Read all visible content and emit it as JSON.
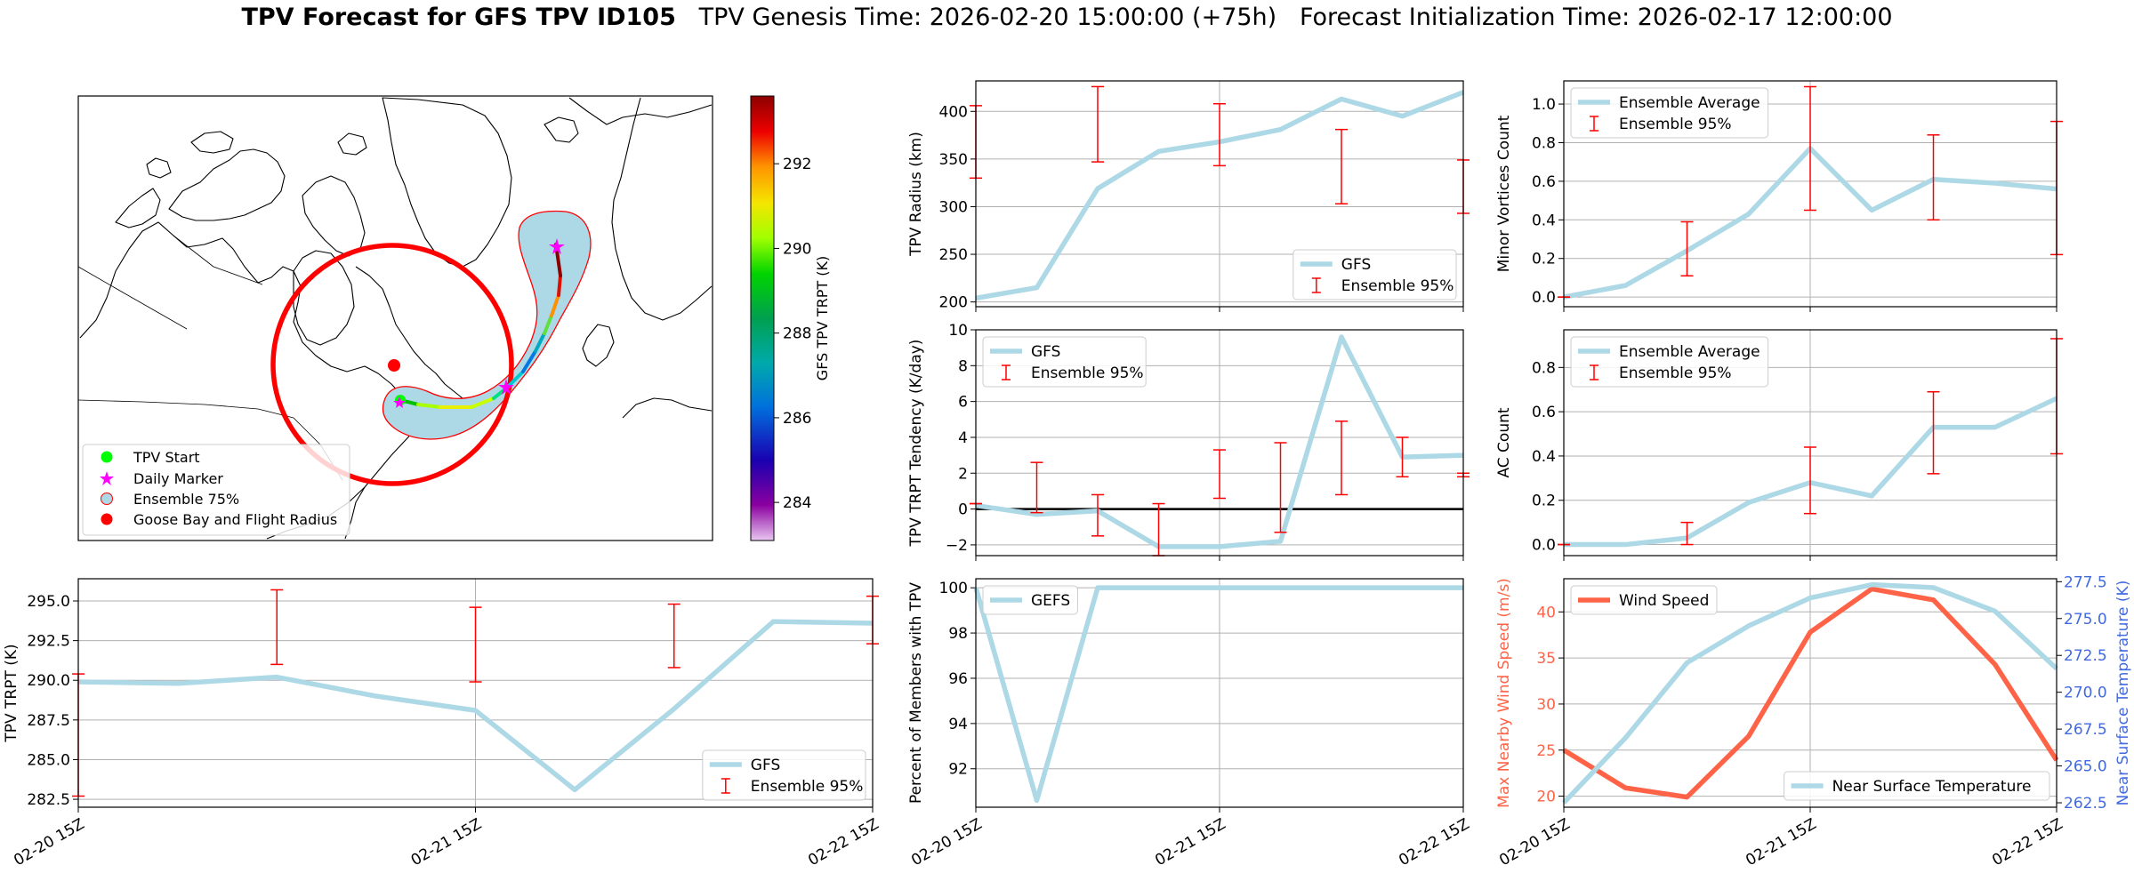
{
  "title": {
    "main": "TPV Forecast for GFS TPV ID105",
    "genesis": "TPV Genesis Time: 2026-02-20 15:00:00 (+75h)",
    "init": "Forecast Initialization Time: 2026-02-17 12:00:00"
  },
  "colors": {
    "gfs_line": "#add8e6",
    "errorbar": "#ff0000",
    "wind_line": "#ff6347",
    "temp_axis": "#4169e1",
    "track_fill": "#add8e6",
    "zero_line": "#000000"
  },
  "chart_data": [
    {
      "id": "map",
      "type": "map",
      "colorbar": {
        "label": "GFS TPV TRPT (K)",
        "ticks": [
          284,
          286,
          288,
          290,
          292
        ],
        "range": [
          283.1,
          293.6
        ],
        "colormap": "nipy_spectral"
      },
      "legend": [
        "TPV Start",
        "Daily Marker",
        "Ensemble 75%",
        "Goose Bay and Flight Radius"
      ],
      "legend_placement": "lower-left"
    },
    {
      "id": "radius",
      "type": "line",
      "x_ticks": [
        "",
        "",
        ""
      ],
      "ylabel": "TPV Radius (km)",
      "ylim": [
        195,
        432
      ],
      "yticks": [
        200,
        250,
        300,
        350,
        400
      ],
      "ytick_labels": [
        "200",
        "250",
        "300",
        "350",
        "400"
      ],
      "grid": true,
      "legend": [
        "GFS",
        "Ensemble 95%"
      ],
      "legend_placement": "lower-right",
      "series": [
        {
          "name": "GFS",
          "x": [
            0,
            6,
            12,
            18,
            24,
            30,
            36,
            42,
            48
          ],
          "values": [
            204,
            215,
            319,
            358,
            368,
            381,
            413,
            395,
            420
          ]
        }
      ],
      "errorbars": {
        "x": [
          0,
          12,
          24,
          36,
          48
        ],
        "low": [
          330,
          347,
          343,
          303,
          293
        ],
        "high": [
          406,
          426,
          408,
          381,
          349
        ]
      }
    },
    {
      "id": "minor",
      "type": "line",
      "x_ticks": [
        "",
        "",
        ""
      ],
      "ylabel": "Minor Vortices Count",
      "ylim": [
        -0.05,
        1.12
      ],
      "yticks": [
        0,
        0.2,
        0.4,
        0.6,
        0.8,
        1.0
      ],
      "ytick_labels": [
        "0.0",
        "0.2",
        "0.4",
        "0.6",
        "0.8",
        "1.0"
      ],
      "grid": true,
      "legend": [
        "Ensemble Average",
        "Ensemble 95%"
      ],
      "legend_placement": "upper-left",
      "series": [
        {
          "name": "Ensemble Average",
          "x": [
            0,
            6,
            12,
            18,
            24,
            30,
            36,
            42,
            48
          ],
          "values": [
            0,
            0.06,
            0.24,
            0.43,
            0.77,
            0.45,
            0.61,
            0.59,
            0.56
          ]
        }
      ],
      "errorbars": {
        "x": [
          0,
          12,
          24,
          36,
          48
        ],
        "low": [
          0,
          0.11,
          0.45,
          0.4,
          0.22
        ],
        "high": [
          0,
          0.39,
          1.09,
          0.84,
          0.91
        ]
      }
    },
    {
      "id": "tendency",
      "type": "line",
      "x_ticks": [
        "",
        "",
        ""
      ],
      "ylabel": "TPV TRPT Tendency (K/day)",
      "ylim": [
        -2.6,
        10
      ],
      "yticks": [
        -2,
        0,
        2,
        4,
        6,
        8,
        10
      ],
      "ytick_labels": [
        "−2",
        "0",
        "2",
        "4",
        "6",
        "8",
        "10"
      ],
      "grid": true,
      "zero_line": true,
      "legend": [
        "GFS",
        "Ensemble 95%"
      ],
      "legend_placement": "upper-left",
      "series": [
        {
          "name": "GFS",
          "x": [
            0,
            6,
            12,
            18,
            24,
            30,
            36,
            42,
            48
          ],
          "values": [
            0.2,
            -0.3,
            -0.1,
            -2.1,
            -2.1,
            -1.8,
            9.6,
            2.9,
            3.0
          ]
        }
      ],
      "errorbars": {
        "x": [
          0,
          6,
          12,
          18,
          24,
          30,
          36,
          42,
          48
        ],
        "low": [
          0.3,
          -0.2,
          -1.5,
          -2.6,
          0.6,
          -1.3,
          0.8,
          1.8,
          1.8
        ],
        "high": [
          0.3,
          2.6,
          0.8,
          0.3,
          3.3,
          3.7,
          4.9,
          4.0,
          2.0
        ]
      }
    },
    {
      "id": "ac",
      "type": "line",
      "x_ticks": [
        "",
        "",
        ""
      ],
      "ylabel": "AC Count",
      "ylim": [
        -0.05,
        0.97
      ],
      "yticks": [
        0,
        0.2,
        0.4,
        0.6,
        0.8
      ],
      "ytick_labels": [
        "0.0",
        "0.2",
        "0.4",
        "0.6",
        "0.8"
      ],
      "grid": true,
      "legend": [
        "Ensemble Average",
        "Ensemble 95%"
      ],
      "legend_placement": "upper-left",
      "series": [
        {
          "name": "Ensemble Average",
          "x": [
            0,
            6,
            12,
            18,
            24,
            30,
            36,
            42,
            48
          ],
          "values": [
            0,
            0,
            0.03,
            0.19,
            0.28,
            0.22,
            0.53,
            0.53,
            0.66
          ]
        }
      ],
      "errorbars": {
        "x": [
          0,
          12,
          24,
          36,
          48
        ],
        "low": [
          0,
          0,
          0.14,
          0.32,
          0.41
        ],
        "high": [
          0,
          0.1,
          0.44,
          0.69,
          0.93
        ]
      }
    },
    {
      "id": "trpt",
      "type": "line",
      "x_ticks": [
        "02-20 15Z",
        "02-21 15Z",
        "02-22 15Z"
      ],
      "ylabel": "TPV TRPT (K)",
      "ylim": [
        282,
        296.4
      ],
      "yticks": [
        282.5,
        285,
        287.5,
        290,
        292.5,
        295
      ],
      "ytick_labels": [
        "282.5",
        "285.0",
        "287.5",
        "290.0",
        "292.5",
        "295.0"
      ],
      "grid": true,
      "legend": [
        "GFS",
        "Ensemble 95%"
      ],
      "legend_placement": "lower-right",
      "series": [
        {
          "name": "GFS",
          "x": [
            0,
            6,
            12,
            18,
            24,
            30,
            36,
            42,
            48
          ],
          "values": [
            289.9,
            289.8,
            290.2,
            289.0,
            288.1,
            283.1,
            288.2,
            293.7,
            293.6
          ]
        }
      ],
      "errorbars": {
        "x": [
          0,
          12,
          24,
          36,
          48
        ],
        "low": [
          282.7,
          291.0,
          289.9,
          290.8,
          292.3
        ],
        "high": [
          290.4,
          295.7,
          294.6,
          294.8,
          295.3
        ]
      }
    },
    {
      "id": "members",
      "type": "line",
      "x_ticks": [
        "02-20 15Z",
        "02-21 15Z",
        "02-22 15Z"
      ],
      "ylabel": "Percent of Members with TPV",
      "ylim": [
        90.3,
        100.4
      ],
      "yticks": [
        92,
        94,
        96,
        98,
        100
      ],
      "ytick_labels": [
        "92",
        "94",
        "96",
        "98",
        "100"
      ],
      "grid": true,
      "legend": [
        "GEFS"
      ],
      "legend_placement": "upper-left",
      "series": [
        {
          "name": "GEFS",
          "x": [
            0,
            6,
            12,
            18,
            24,
            30,
            36,
            42,
            48
          ],
          "values": [
            100,
            90.6,
            100,
            100,
            100,
            100,
            100,
            100,
            100
          ]
        }
      ]
    },
    {
      "id": "wind_temp",
      "type": "line",
      "x_ticks": [
        "02-20 15Z",
        "02-21 15Z",
        "02-22 15Z"
      ],
      "ylabel": "Max Nearby Wind Speed (m/s)",
      "ylabel2": "Near Surface Temperature (K)",
      "ylim": [
        18.8,
        43.6
      ],
      "yticks": [
        20,
        25,
        30,
        35,
        40
      ],
      "ytick_labels": [
        "20",
        "25",
        "30",
        "35",
        "40"
      ],
      "ylim2": [
        262.2,
        277.7
      ],
      "yticks2": [
        262.5,
        265.0,
        267.5,
        270.0,
        272.5,
        275.0,
        277.5
      ],
      "ytick_labels2": [
        "262.5",
        "265.0",
        "267.5",
        "270.0",
        "272.5",
        "275.0",
        "277.5"
      ],
      "grid": true,
      "legend": [
        "Wind Speed"
      ],
      "legend2": [
        "Near Surface Temperature"
      ],
      "legend_placement": "upper-left",
      "series": [
        {
          "name": "Wind Speed",
          "x": [
            0,
            6,
            12,
            18,
            24,
            30,
            36,
            42,
            48
          ],
          "values": [
            25,
            20.9,
            19.9,
            26.5,
            37.8,
            42.5,
            41.3,
            34.3,
            23.9
          ]
        },
        {
          "name": "Near Surface Temperature",
          "x": [
            0,
            6,
            12,
            18,
            24,
            30,
            36,
            42,
            48
          ],
          "values": [
            262.5,
            266.9,
            272.0,
            274.5,
            276.4,
            277.3,
            277.1,
            275.5,
            271.6
          ]
        }
      ]
    }
  ]
}
